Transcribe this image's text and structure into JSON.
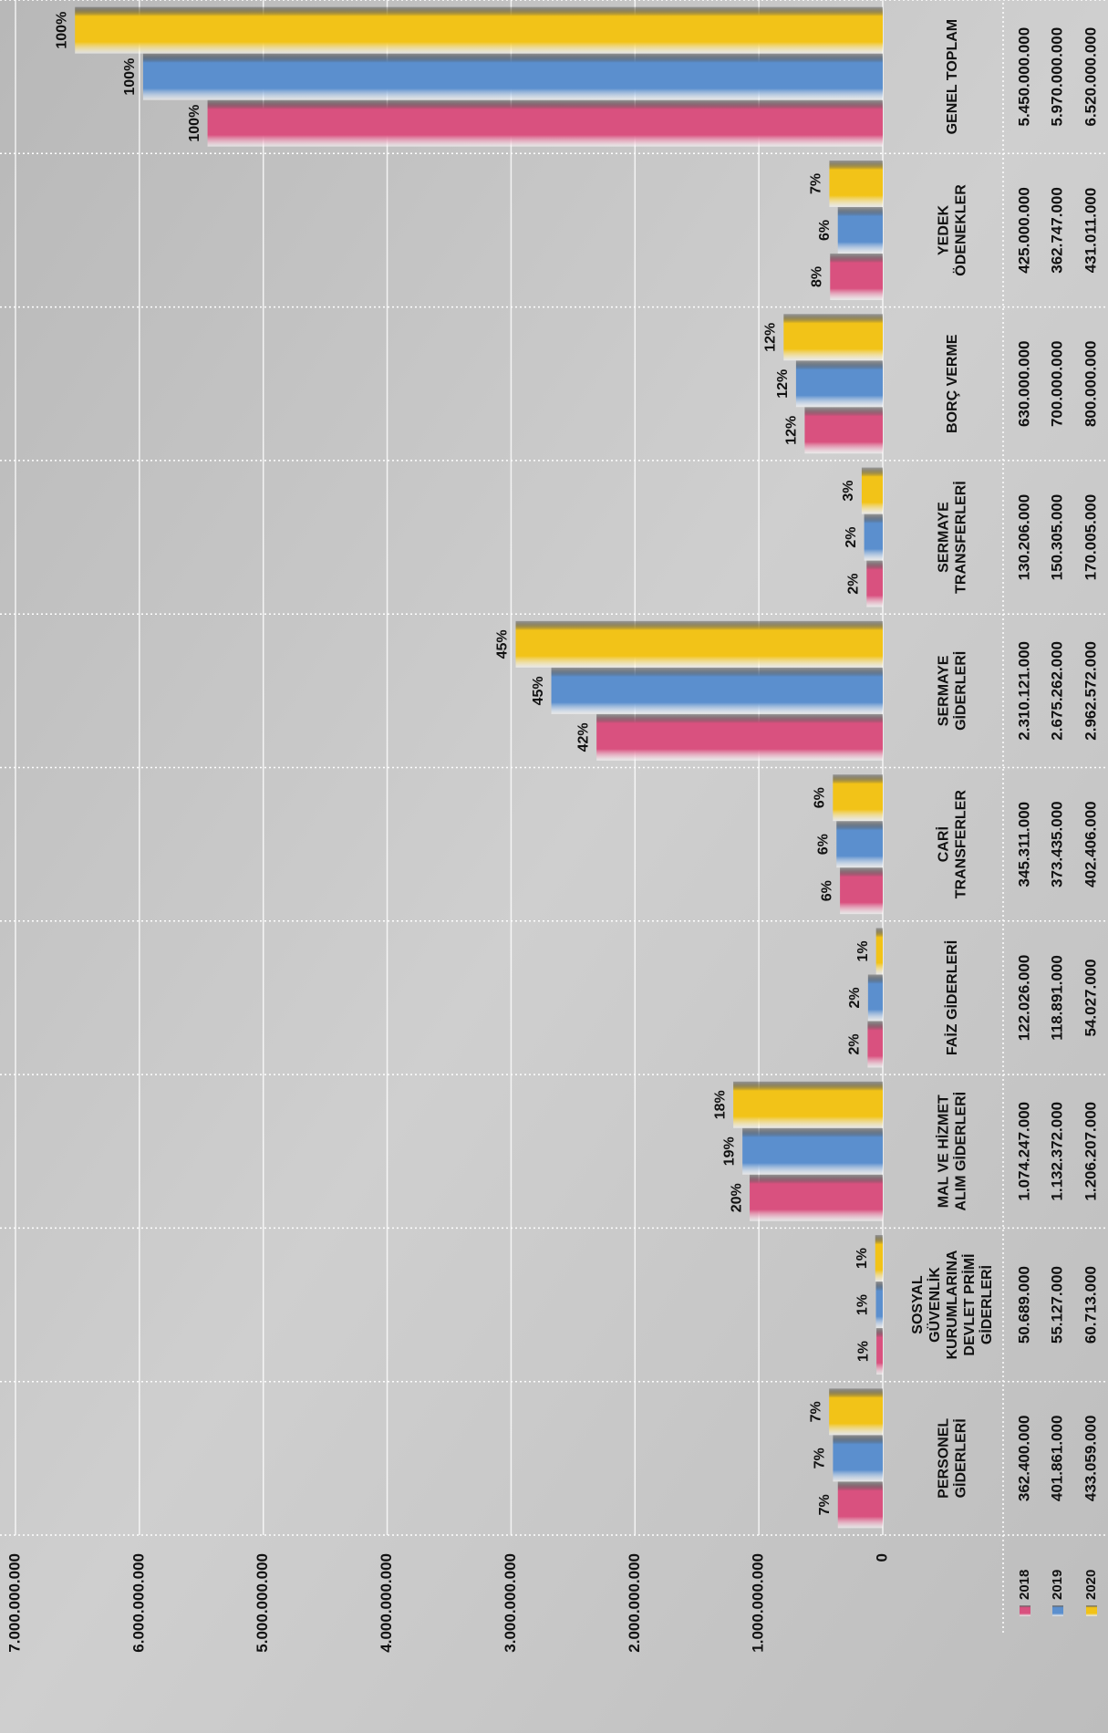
{
  "chart_data": {
    "type": "bar",
    "orientation": "rotated-ccw",
    "categories": [
      [
        "PERSONEL",
        "GİDERLERİ"
      ],
      [
        "SOSYAL",
        "GÜVENLİK",
        "KURUMLARINA",
        "DEVLET PRİMİ",
        "GİDERLERİ"
      ],
      [
        "MAL VE HİZMET",
        "ALIM GİDERLERİ"
      ],
      [
        "FAİZ GİDERLERİ"
      ],
      [
        "CARİ",
        "TRANSFERLER"
      ],
      [
        "SERMAYE",
        "GİDERLERİ"
      ],
      [
        "SERMAYE",
        "TRANSFERLERİ"
      ],
      [
        "BORÇ VERME"
      ],
      [
        "YEDEK",
        "ÖDENEKLER"
      ],
      [
        "GENEL TOPLAM"
      ]
    ],
    "series": [
      {
        "name": "2018",
        "color": "#d9517f",
        "values": [
          362400000,
          50689000,
          1074247000,
          122026000,
          345311000,
          2310121000,
          130206000,
          630000000,
          425000000,
          5450000000
        ],
        "value_labels": [
          "362.400.000",
          "50.689.000",
          "1.074.247.000",
          "122.026.000",
          "345.311.000",
          "2.310.121.000",
          "130.206.000",
          "630.000.000",
          "425.000.000",
          "5.450.000.000"
        ],
        "share_labels": [
          "7%",
          "1%",
          "20%",
          "2%",
          "6%",
          "42%",
          "2%",
          "12%",
          "8%",
          "100%"
        ]
      },
      {
        "name": "2019",
        "color": "#5b8fce",
        "values": [
          401861000,
          55127000,
          1132372000,
          118891000,
          373435000,
          2675262000,
          150305000,
          700000000,
          362747000,
          5970000000
        ],
        "value_labels": [
          "401.861.000",
          "55.127.000",
          "1.132.372.000",
          "118.891.000",
          "373.435.000",
          "2.675.262.000",
          "150.305.000",
          "700.000.000",
          "362.747.000",
          "5.970.000.000"
        ],
        "share_labels": [
          "7%",
          "1%",
          "19%",
          "2%",
          "6%",
          "45%",
          "2%",
          "12%",
          "6%",
          "100%"
        ]
      },
      {
        "name": "2020",
        "color": "#f2c318",
        "values": [
          433059000,
          60713000,
          1206207000,
          54027000,
          402406000,
          2962572000,
          170005000,
          800000000,
          431011000,
          6520000000
        ],
        "value_labels": [
          "433.059.000",
          "60.713.000",
          "1.206.207.000",
          "54.027.000",
          "402.406.000",
          "2.962.572.000",
          "170.005.000",
          "800.000.000",
          "431.011.000",
          "6.520.000.000"
        ],
        "share_labels": [
          "7%",
          "1%",
          "18%",
          "1%",
          "6%",
          "45%",
          "3%",
          "12%",
          "7%",
          "100%"
        ]
      }
    ],
    "ylim": [
      0,
      7000000000
    ],
    "yticks": [
      0,
      {
        "value": 1000000000,
        "label": "1.000.000.000"
      },
      {
        "value": 2000000000,
        "label": "2.000.000.000"
      },
      {
        "value": 3000000000,
        "label": "3.000.000.000"
      },
      {
        "value": 4000000000,
        "label": "4.000.000.000"
      },
      {
        "value": 5000000000,
        "label": "5.000.000.000"
      },
      {
        "value": 6000000000,
        "label": "6.000.000.000"
      },
      {
        "value": 7000000000,
        "label": "7.000.000.000"
      }
    ],
    "grid": true
  }
}
